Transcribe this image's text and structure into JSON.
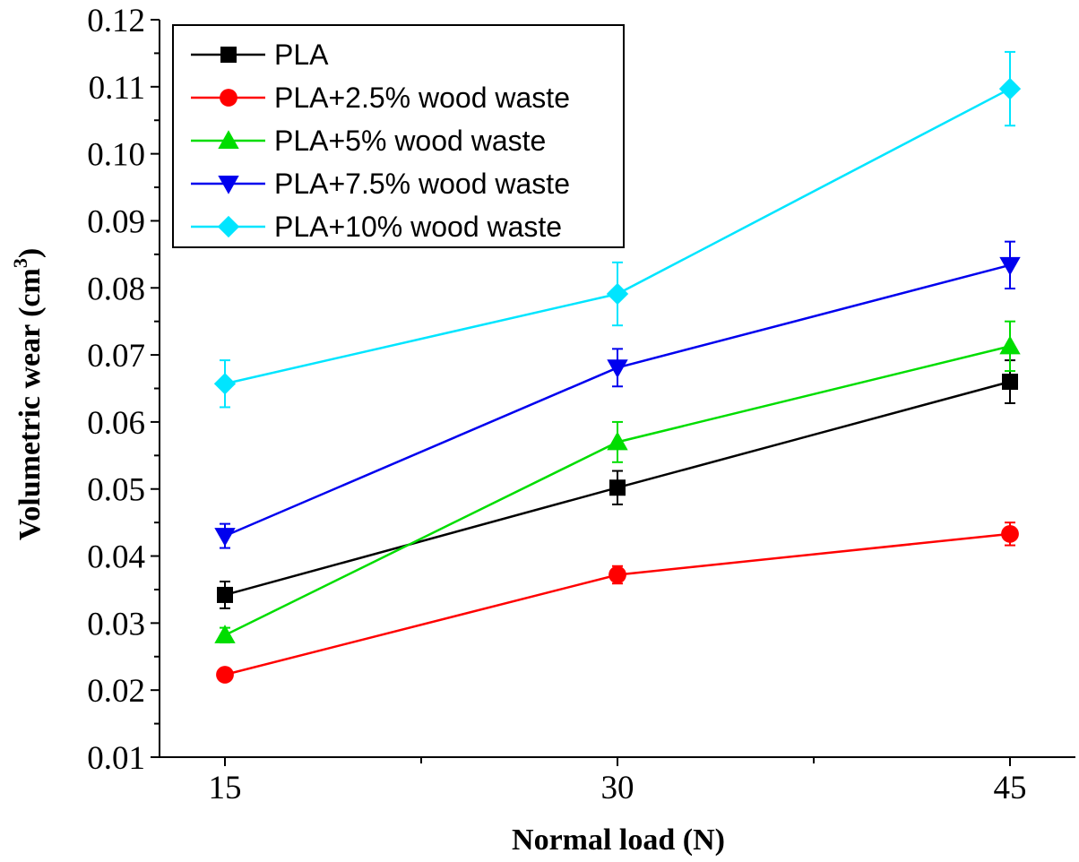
{
  "chart_data": {
    "type": "line",
    "x": [
      15,
      30,
      45
    ],
    "x_ticks": [
      "15",
      "30",
      "45"
    ],
    "y_ticks": [
      "0.01",
      "0.02",
      "0.03",
      "0.04",
      "0.05",
      "0.06",
      "0.07",
      "0.08",
      "0.09",
      "0.10",
      "0.11",
      "0.12"
    ],
    "xlim": [
      12.5,
      47.5
    ],
    "ylim": [
      0.01,
      0.12
    ],
    "xlabel": "Normal load (N)",
    "ylabel_main": "Volumetric wear (cm",
    "ylabel_sup": "3",
    "ylabel_close": ")",
    "grid": false,
    "legend_position": "top-left",
    "series": [
      {
        "name": "PLA",
        "color": "#000000",
        "marker": "square",
        "values": [
          0.0342,
          0.0502,
          0.066
        ],
        "errors": [
          0.002,
          0.0025,
          0.0032
        ]
      },
      {
        "name": "PLA+2.5% wood waste",
        "color": "#ff0000",
        "marker": "circle",
        "values": [
          0.0223,
          0.0372,
          0.0433
        ],
        "errors": [
          0.0009,
          0.0013,
          0.0017
        ]
      },
      {
        "name": "PLA+5% wood waste",
        "color": "#00dd00",
        "marker": "triangle-up",
        "values": [
          0.0282,
          0.057,
          0.0713
        ],
        "errors": [
          0.0011,
          0.003,
          0.0037
        ]
      },
      {
        "name": "PLA+7.5% wood waste",
        "color": "#0000ee",
        "marker": "triangle-down",
        "values": [
          0.043,
          0.0681,
          0.0834
        ],
        "errors": [
          0.0018,
          0.0028,
          0.0035
        ]
      },
      {
        "name": "PLA+10% wood waste",
        "color": "#00e5ff",
        "marker": "diamond",
        "values": [
          0.0657,
          0.0791,
          0.1097
        ],
        "errors": [
          0.0035,
          0.0047,
          0.0055
        ]
      }
    ]
  }
}
